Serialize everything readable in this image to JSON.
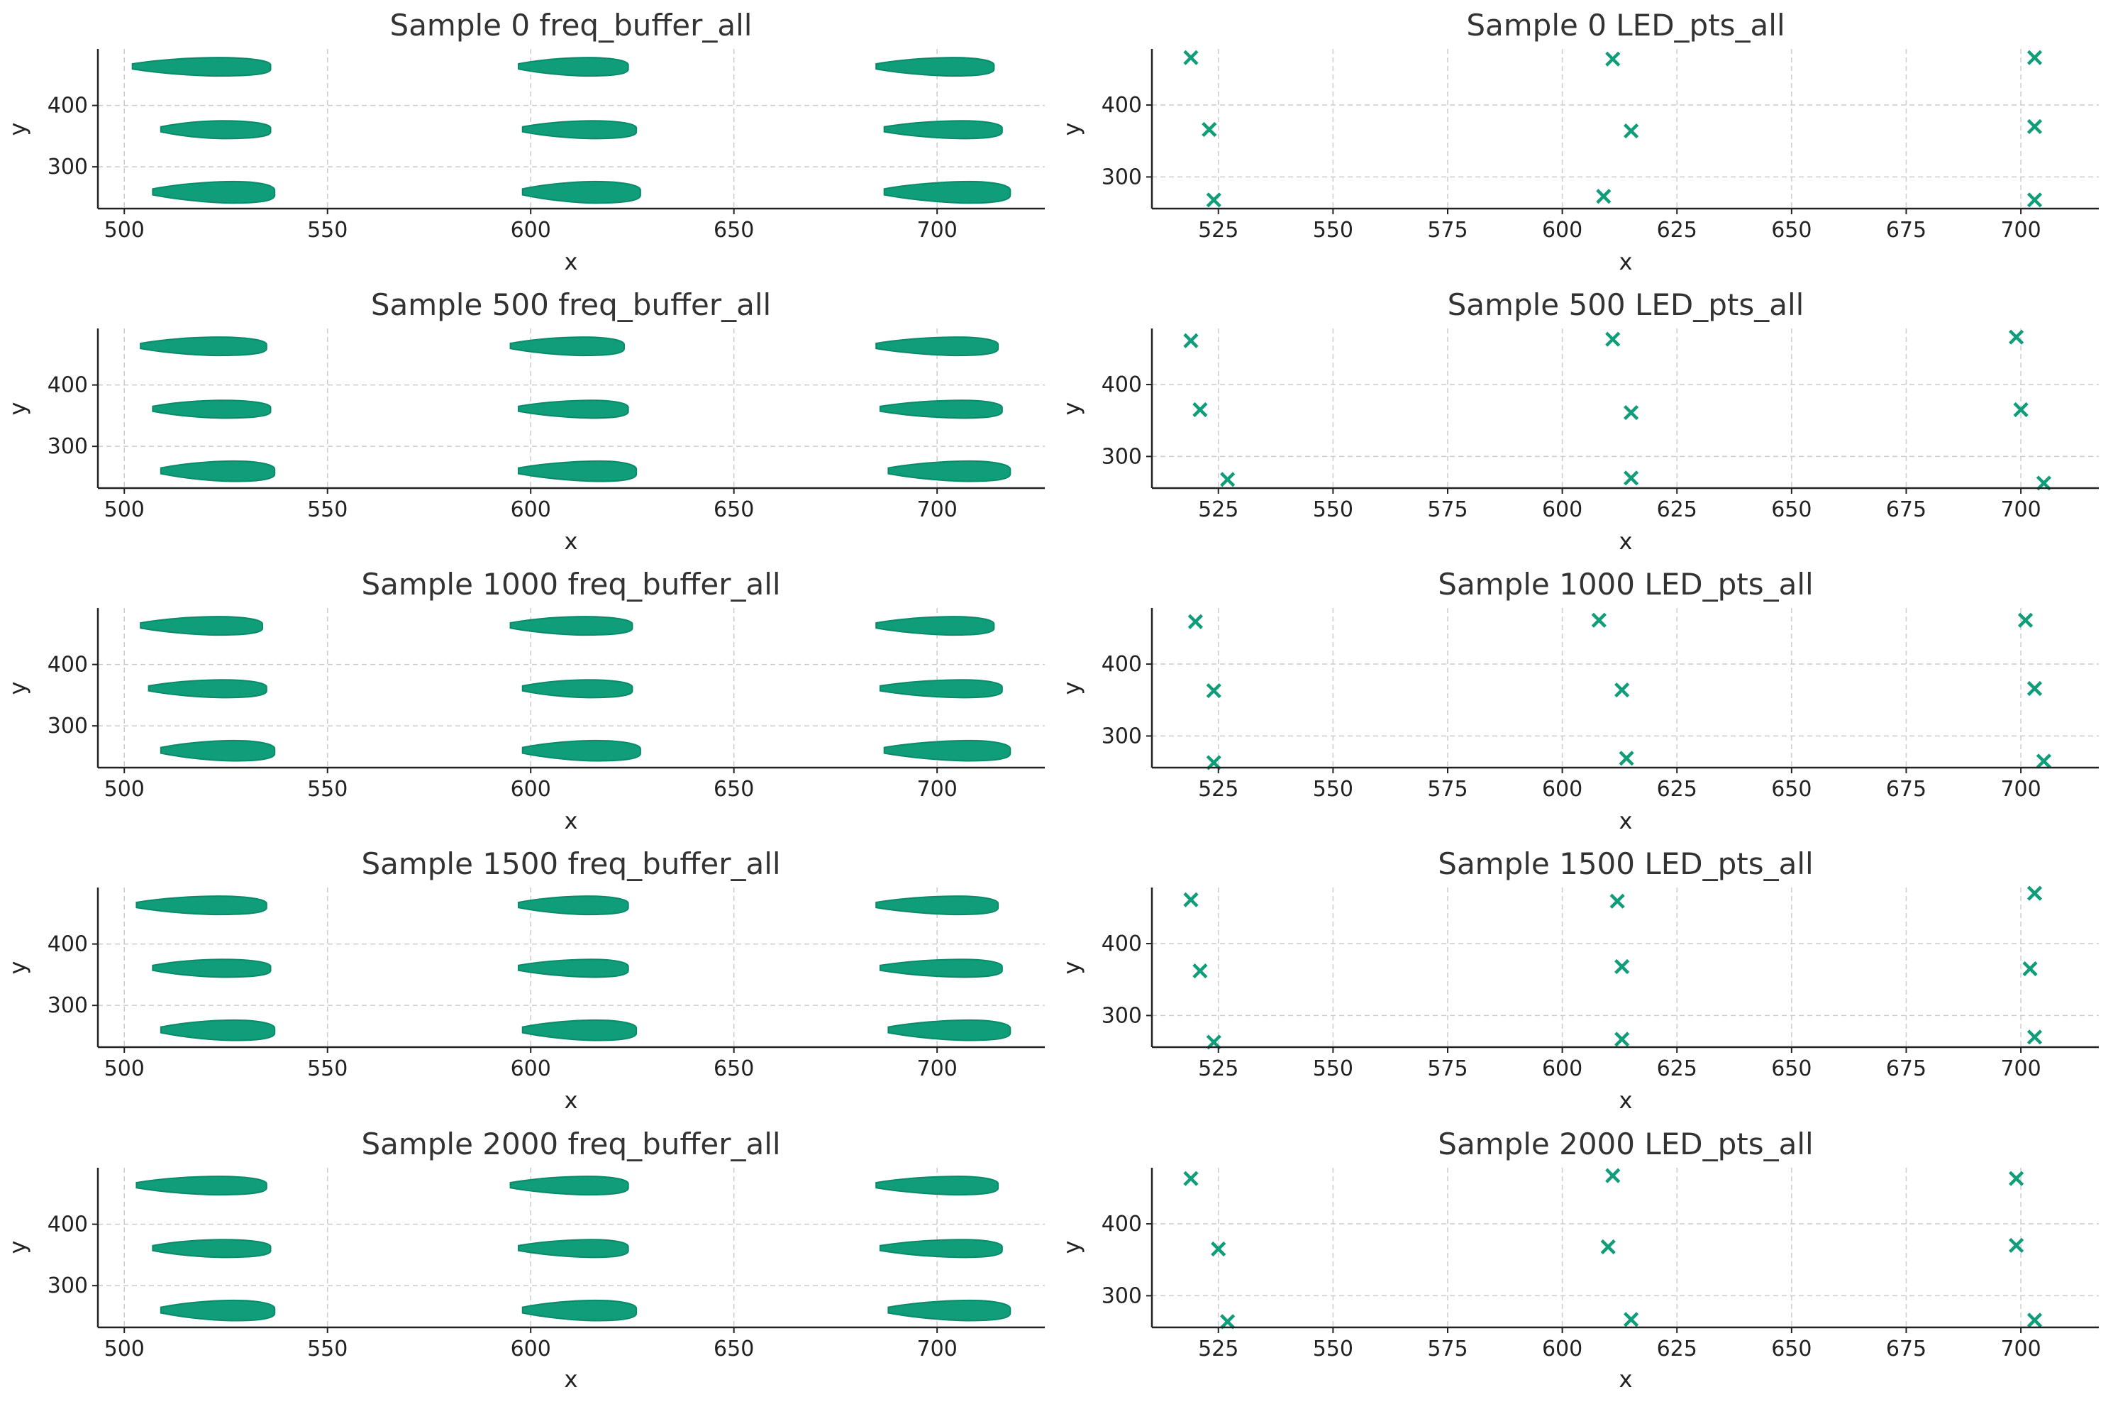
{
  "figure": {
    "grid": true,
    "point_color": "#0f9d7a",
    "text_color": "#333333",
    "axis_color": "#222222",
    "grid_color": "#cccccc"
  },
  "chart_data": [
    {
      "type": "scatter",
      "title": "Sample 0 freq_buffer_all",
      "xlabel": "x",
      "ylabel": "y",
      "xlim": [
        493.5,
        726.5
      ],
      "ylim": [
        232,
        492
      ],
      "xticks": [
        500,
        550,
        600,
        650,
        700
      ],
      "yticks": [
        300,
        400
      ],
      "clusters": [
        {
          "x": [
            502,
            536
          ],
          "y": [
            448,
            478
          ],
          "peak": 523
        },
        {
          "x": [
            509,
            536
          ],
          "y": [
            346,
            375
          ],
          "peak": 524
        },
        {
          "x": [
            507,
            537
          ],
          "y": [
            241,
            276
          ],
          "peak": 527
        },
        {
          "x": [
            597,
            624
          ],
          "y": [
            448,
            478
          ],
          "peak": 614
        },
        {
          "x": [
            598,
            626
          ],
          "y": [
            346,
            375
          ],
          "peak": 615
        },
        {
          "x": [
            598,
            627
          ],
          "y": [
            241,
            276
          ],
          "peak": 616
        },
        {
          "x": [
            685,
            714
          ],
          "y": [
            448,
            478
          ],
          "peak": 704
        },
        {
          "x": [
            687,
            716
          ],
          "y": [
            346,
            375
          ],
          "peak": 706
        },
        {
          "x": [
            687,
            718
          ],
          "y": [
            241,
            276
          ],
          "peak": 708
        }
      ]
    },
    {
      "type": "scatter",
      "title": "Sample 0 LED_pts_all",
      "xlabel": "x",
      "ylabel": "y",
      "xlim": [
        510.5,
        717
      ],
      "ylim": [
        256,
        478
      ],
      "xticks": [
        525,
        550,
        575,
        600,
        625,
        650,
        675,
        700
      ],
      "yticks": [
        300,
        400
      ],
      "points": [
        [
          519,
          466
        ],
        [
          523,
          366
        ],
        [
          524,
          268
        ],
        [
          611,
          464
        ],
        [
          615,
          364
        ],
        [
          609,
          273
        ],
        [
          703,
          466
        ],
        [
          703,
          370
        ],
        [
          703,
          268
        ]
      ]
    },
    {
      "type": "scatter",
      "title": "Sample 500 freq_buffer_all",
      "xlabel": "x",
      "ylabel": "y",
      "xlim": [
        493.5,
        726.5
      ],
      "ylim": [
        232,
        492
      ],
      "xticks": [
        500,
        550,
        600,
        650,
        700
      ],
      "yticks": [
        300,
        400
      ],
      "clusters": [
        {
          "x": [
            504,
            535
          ],
          "y": [
            448,
            478
          ],
          "peak": 523
        },
        {
          "x": [
            507,
            536
          ],
          "y": [
            346,
            375
          ],
          "peak": 524
        },
        {
          "x": [
            509,
            537
          ],
          "y": [
            243,
            276
          ],
          "peak": 527
        },
        {
          "x": [
            595,
            623
          ],
          "y": [
            448,
            478
          ],
          "peak": 613
        },
        {
          "x": [
            597,
            624
          ],
          "y": [
            346,
            375
          ],
          "peak": 615
        },
        {
          "x": [
            597,
            626
          ],
          "y": [
            243,
            276
          ],
          "peak": 617
        },
        {
          "x": [
            685,
            715
          ],
          "y": [
            448,
            478
          ],
          "peak": 705
        },
        {
          "x": [
            686,
            716
          ],
          "y": [
            346,
            375
          ],
          "peak": 706
        },
        {
          "x": [
            688,
            718
          ],
          "y": [
            243,
            276
          ],
          "peak": 708
        }
      ]
    },
    {
      "type": "scatter",
      "title": "Sample 500 LED_pts_all",
      "xlabel": "x",
      "ylabel": "y",
      "xlim": [
        510.5,
        717
      ],
      "ylim": [
        256,
        478
      ],
      "xticks": [
        525,
        550,
        575,
        600,
        625,
        650,
        675,
        700
      ],
      "yticks": [
        300,
        400
      ],
      "points": [
        [
          519,
          461
        ],
        [
          521,
          365
        ],
        [
          527,
          268
        ],
        [
          611,
          463
        ],
        [
          615,
          361
        ],
        [
          615,
          270
        ],
        [
          699,
          466
        ],
        [
          700,
          365
        ],
        [
          705,
          263
        ]
      ]
    },
    {
      "type": "scatter",
      "title": "Sample 1000 freq_buffer_all",
      "xlabel": "x",
      "ylabel": "y",
      "xlim": [
        493.5,
        726.5
      ],
      "ylim": [
        232,
        492
      ],
      "xticks": [
        500,
        550,
        600,
        650,
        700
      ],
      "yticks": [
        300,
        400
      ],
      "clusters": [
        {
          "x": [
            504,
            534
          ],
          "y": [
            448,
            478
          ],
          "peak": 523
        },
        {
          "x": [
            506,
            535
          ],
          "y": [
            346,
            375
          ],
          "peak": 524
        },
        {
          "x": [
            509,
            537
          ],
          "y": [
            243,
            276
          ],
          "peak": 527
        },
        {
          "x": [
            595,
            625
          ],
          "y": [
            448,
            478
          ],
          "peak": 613
        },
        {
          "x": [
            598,
            625
          ],
          "y": [
            346,
            375
          ],
          "peak": 614
        },
        {
          "x": [
            598,
            627
          ],
          "y": [
            243,
            276
          ],
          "peak": 616
        },
        {
          "x": [
            685,
            714
          ],
          "y": [
            448,
            478
          ],
          "peak": 704
        },
        {
          "x": [
            686,
            716
          ],
          "y": [
            346,
            375
          ],
          "peak": 706
        },
        {
          "x": [
            687,
            718
          ],
          "y": [
            243,
            276
          ],
          "peak": 708
        }
      ]
    },
    {
      "type": "scatter",
      "title": "Sample 1000 LED_pts_all",
      "xlabel": "x",
      "ylabel": "y",
      "xlim": [
        510.5,
        717
      ],
      "ylim": [
        256,
        478
      ],
      "xticks": [
        525,
        550,
        575,
        600,
        625,
        650,
        675,
        700
      ],
      "yticks": [
        300,
        400
      ],
      "points": [
        [
          520,
          459
        ],
        [
          524,
          363
        ],
        [
          524,
          263
        ],
        [
          608,
          461
        ],
        [
          613,
          364
        ],
        [
          614,
          269
        ],
        [
          701,
          461
        ],
        [
          703,
          366
        ],
        [
          705,
          265
        ]
      ]
    },
    {
      "type": "scatter",
      "title": "Sample 1500 freq_buffer_all",
      "xlabel": "x",
      "ylabel": "y",
      "xlim": [
        493.5,
        726.5
      ],
      "ylim": [
        232,
        492
      ],
      "xticks": [
        500,
        550,
        600,
        650,
        700
      ],
      "yticks": [
        300,
        400
      ],
      "clusters": [
        {
          "x": [
            503,
            535
          ],
          "y": [
            448,
            478
          ],
          "peak": 523
        },
        {
          "x": [
            507,
            536
          ],
          "y": [
            346,
            375
          ],
          "peak": 524
        },
        {
          "x": [
            509,
            537
          ],
          "y": [
            243,
            276
          ],
          "peak": 527
        },
        {
          "x": [
            597,
            624
          ],
          "y": [
            448,
            478
          ],
          "peak": 614
        },
        {
          "x": [
            597,
            624
          ],
          "y": [
            346,
            375
          ],
          "peak": 615
        },
        {
          "x": [
            598,
            626
          ],
          "y": [
            243,
            276
          ],
          "peak": 616
        },
        {
          "x": [
            685,
            715
          ],
          "y": [
            448,
            478
          ],
          "peak": 705
        },
        {
          "x": [
            686,
            716
          ],
          "y": [
            346,
            375
          ],
          "peak": 706
        },
        {
          "x": [
            688,
            718
          ],
          "y": [
            243,
            276
          ],
          "peak": 708
        }
      ]
    },
    {
      "type": "scatter",
      "title": "Sample 1500 LED_pts_all",
      "xlabel": "x",
      "ylabel": "y",
      "xlim": [
        510.5,
        717
      ],
      "ylim": [
        256,
        478
      ],
      "xticks": [
        525,
        550,
        575,
        600,
        625,
        650,
        675,
        700
      ],
      "yticks": [
        300,
        400
      ],
      "points": [
        [
          519,
          461
        ],
        [
          521,
          362
        ],
        [
          524,
          263
        ],
        [
          612,
          459
        ],
        [
          613,
          368
        ],
        [
          613,
          267
        ],
        [
          703,
          470
        ],
        [
          702,
          365
        ],
        [
          703,
          270
        ]
      ]
    },
    {
      "type": "scatter",
      "title": "Sample 2000 freq_buffer_all",
      "xlabel": "x",
      "ylabel": "y",
      "xlim": [
        493.5,
        726.5
      ],
      "ylim": [
        232,
        492
      ],
      "xticks": [
        500,
        550,
        600,
        650,
        700
      ],
      "yticks": [
        300,
        400
      ],
      "clusters": [
        {
          "x": [
            503,
            535
          ],
          "y": [
            448,
            478
          ],
          "peak": 523
        },
        {
          "x": [
            507,
            536
          ],
          "y": [
            346,
            375
          ],
          "peak": 524
        },
        {
          "x": [
            509,
            537
          ],
          "y": [
            243,
            276
          ],
          "peak": 527
        },
        {
          "x": [
            595,
            624
          ],
          "y": [
            448,
            478
          ],
          "peak": 614
        },
        {
          "x": [
            597,
            624
          ],
          "y": [
            346,
            375
          ],
          "peak": 615
        },
        {
          "x": [
            598,
            626
          ],
          "y": [
            243,
            276
          ],
          "peak": 616
        },
        {
          "x": [
            685,
            715
          ],
          "y": [
            448,
            478
          ],
          "peak": 705
        },
        {
          "x": [
            686,
            716
          ],
          "y": [
            346,
            375
          ],
          "peak": 706
        },
        {
          "x": [
            688,
            718
          ],
          "y": [
            243,
            276
          ],
          "peak": 708
        }
      ]
    },
    {
      "type": "scatter",
      "title": "Sample 2000 LED_pts_all",
      "xlabel": "x",
      "ylabel": "y",
      "xlim": [
        510.5,
        717
      ],
      "ylim": [
        256,
        478
      ],
      "xticks": [
        525,
        550,
        575,
        600,
        625,
        650,
        675,
        700
      ],
      "yticks": [
        300,
        400
      ],
      "points": [
        [
          519,
          463
        ],
        [
          525,
          365
        ],
        [
          527,
          264
        ],
        [
          611,
          467
        ],
        [
          610,
          368
        ],
        [
          615,
          267
        ],
        [
          699,
          463
        ],
        [
          699,
          370
        ],
        [
          703,
          266
        ]
      ]
    }
  ]
}
